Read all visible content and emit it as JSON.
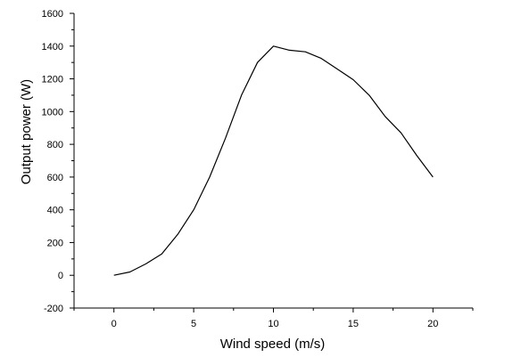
{
  "chart_data": {
    "type": "line",
    "title": "",
    "xlabel": "Wind speed (m/s)",
    "ylabel": "Output  power (W)",
    "xlim": [
      -2.5,
      22.5
    ],
    "ylim": [
      -200,
      1600
    ],
    "xticks": [
      0,
      5,
      10,
      15,
      20
    ],
    "yticks": [
      -200,
      0,
      200,
      400,
      600,
      800,
      1000,
      1200,
      1400,
      1600
    ],
    "xtick_labels": [
      "0",
      "5",
      "10",
      "15",
      "20"
    ],
    "ytick_labels": [
      "-200",
      "0",
      "200",
      "400",
      "600",
      "800",
      "1000",
      "1200",
      "1400",
      "1600"
    ],
    "grid": false,
    "legend": "none",
    "series": [
      {
        "color": "#000000",
        "x": [
          0,
          1,
          2,
          3,
          4,
          5,
          6,
          7,
          8,
          9,
          10,
          11,
          12,
          13,
          14,
          15,
          16,
          17,
          18,
          19,
          20
        ],
        "y": [
          0,
          20,
          70,
          130,
          250,
          400,
          600,
          840,
          1100,
          1300,
          1400,
          1375,
          1365,
          1325,
          1260,
          1195,
          1100,
          970,
          870,
          730,
          600
        ]
      }
    ]
  }
}
